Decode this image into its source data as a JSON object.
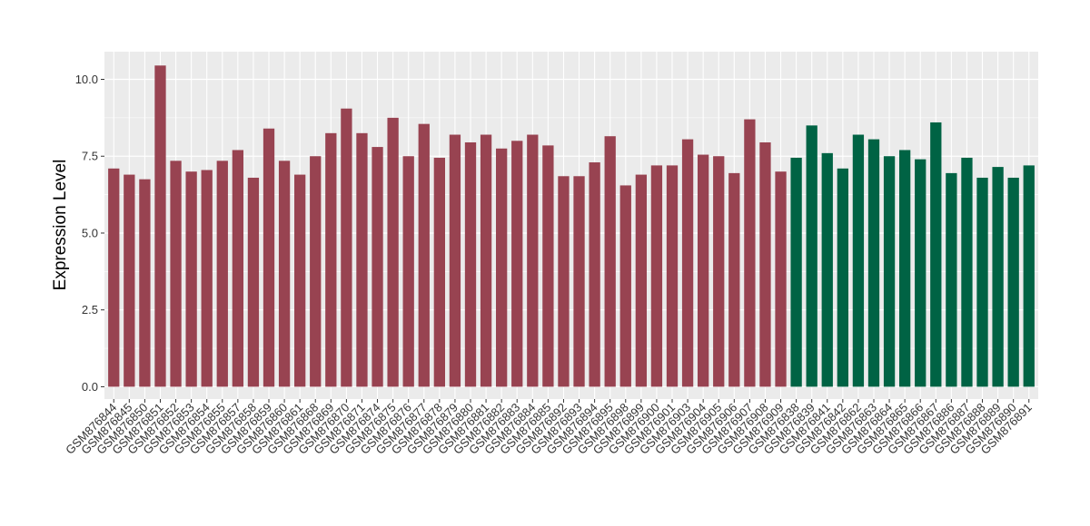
{
  "chart_data": {
    "type": "bar",
    "title": "",
    "xlabel": "",
    "ylabel": "Expression Level",
    "ylim": [
      -0.4,
      10.9
    ],
    "yticks": [
      0.0,
      2.5,
      5.0,
      7.5,
      10.0
    ],
    "ytick_labels": [
      "0.0",
      "2.5",
      "5.0",
      "7.5",
      "10.0"
    ],
    "grid": true,
    "legend": "none",
    "categories": [
      "GSM876844",
      "GSM876845",
      "GSM876850",
      "GSM876851",
      "GSM876852",
      "GSM876853",
      "GSM876854",
      "GSM876855",
      "GSM876857",
      "GSM876858",
      "GSM876859",
      "GSM876860",
      "GSM876861",
      "GSM876868",
      "GSM876869",
      "GSM876870",
      "GSM876871",
      "GSM876874",
      "GSM876875",
      "GSM876876",
      "GSM876877",
      "GSM876878",
      "GSM876879",
      "GSM876880",
      "GSM876881",
      "GSM876882",
      "GSM876883",
      "GSM876884",
      "GSM876885",
      "GSM876892",
      "GSM876893",
      "GSM876894",
      "GSM876895",
      "GSM876898",
      "GSM876899",
      "GSM876900",
      "GSM876901",
      "GSM876903",
      "GSM876904",
      "GSM876905",
      "GSM876906",
      "GSM876907",
      "GSM876908",
      "GSM876909",
      "GSM876838",
      "GSM876839",
      "GSM876841",
      "GSM876842",
      "GSM876862",
      "GSM876863",
      "GSM876864",
      "GSM876865",
      "GSM876866",
      "GSM876867",
      "GSM876886",
      "GSM876887",
      "GSM876888",
      "GSM876889",
      "GSM876890",
      "GSM876891"
    ],
    "values": [
      7.1,
      6.9,
      6.75,
      10.45,
      7.35,
      7.0,
      7.05,
      7.35,
      7.7,
      6.8,
      8.4,
      7.35,
      6.9,
      7.5,
      8.25,
      9.05,
      8.25,
      7.8,
      8.75,
      7.5,
      8.55,
      7.45,
      8.2,
      7.95,
      8.2,
      7.75,
      8.0,
      8.2,
      7.85,
      6.85,
      6.85,
      7.3,
      8.15,
      6.55,
      6.9,
      7.2,
      7.2,
      8.05,
      7.55,
      7.5,
      6.95,
      8.7,
      7.95,
      7.0,
      7.45,
      8.5,
      7.6,
      7.1,
      8.2,
      8.05,
      7.5,
      7.7,
      7.4,
      8.6,
      6.95,
      7.45,
      6.8,
      7.15,
      6.8,
      7.2
    ],
    "groups": [
      "a",
      "a",
      "a",
      "a",
      "a",
      "a",
      "a",
      "a",
      "a",
      "a",
      "a",
      "a",
      "a",
      "a",
      "a",
      "a",
      "a",
      "a",
      "a",
      "a",
      "a",
      "a",
      "a",
      "a",
      "a",
      "a",
      "a",
      "a",
      "a",
      "a",
      "a",
      "a",
      "a",
      "a",
      "a",
      "a",
      "a",
      "a",
      "a",
      "a",
      "a",
      "a",
      "a",
      "a",
      "b",
      "b",
      "b",
      "b",
      "b",
      "b",
      "b",
      "b",
      "b",
      "b",
      "b",
      "b",
      "b",
      "b",
      "b",
      "b"
    ],
    "colors": {
      "a": "#984351",
      "b": "#006344"
    },
    "panel_background": "#ebebeb",
    "gridline_color": "#ffffff"
  }
}
